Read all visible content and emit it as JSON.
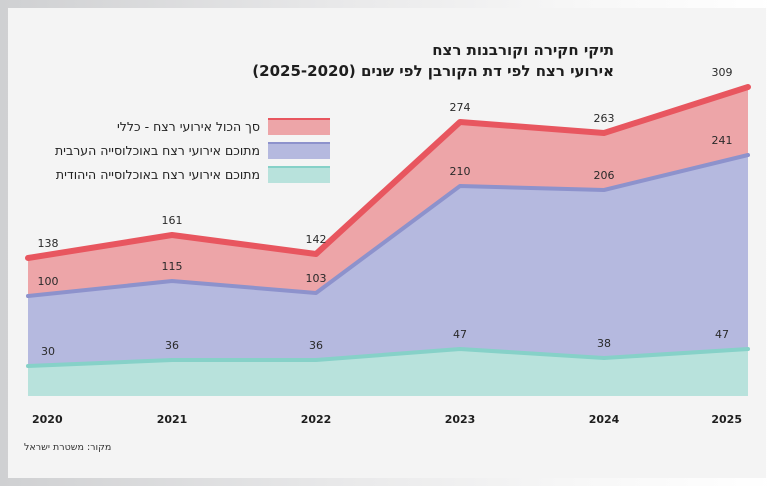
{
  "title_line1": "תיקי חקירה וקורבנות רצח",
  "title_line2": "אירועי רצח לפי דת הקורבן לפי שנים (2025-2020)",
  "source": "מקור: משטרת ישראל",
  "colors": {
    "total_fill": "#eda5a8",
    "total_line": "#e8565f",
    "arab_fill": "#b5b9df",
    "arab_line": "#8d92cc",
    "jewish_fill": "#b8e2dc",
    "jewish_line": "#86d1c8"
  },
  "chart_data": {
    "type": "area",
    "x": [
      "2020",
      "2021",
      "2022",
      "2023",
      "2024",
      "2025"
    ],
    "series": [
      {
        "name": "סך הכול אירועי רצח - כללי",
        "values": [
          138,
          161,
          142,
          274,
          263,
          309
        ]
      },
      {
        "name": "מתוכם אירועי רצח באוכלוסייה הערבית",
        "values": [
          100,
          115,
          103,
          210,
          206,
          241
        ]
      },
      {
        "name": "מתוכם אירועי רצח באוכלוסייה היהודית",
        "values": [
          30,
          36,
          36,
          47,
          38,
          47
        ]
      }
    ],
    "legend_position": "top-left",
    "grid": false
  }
}
